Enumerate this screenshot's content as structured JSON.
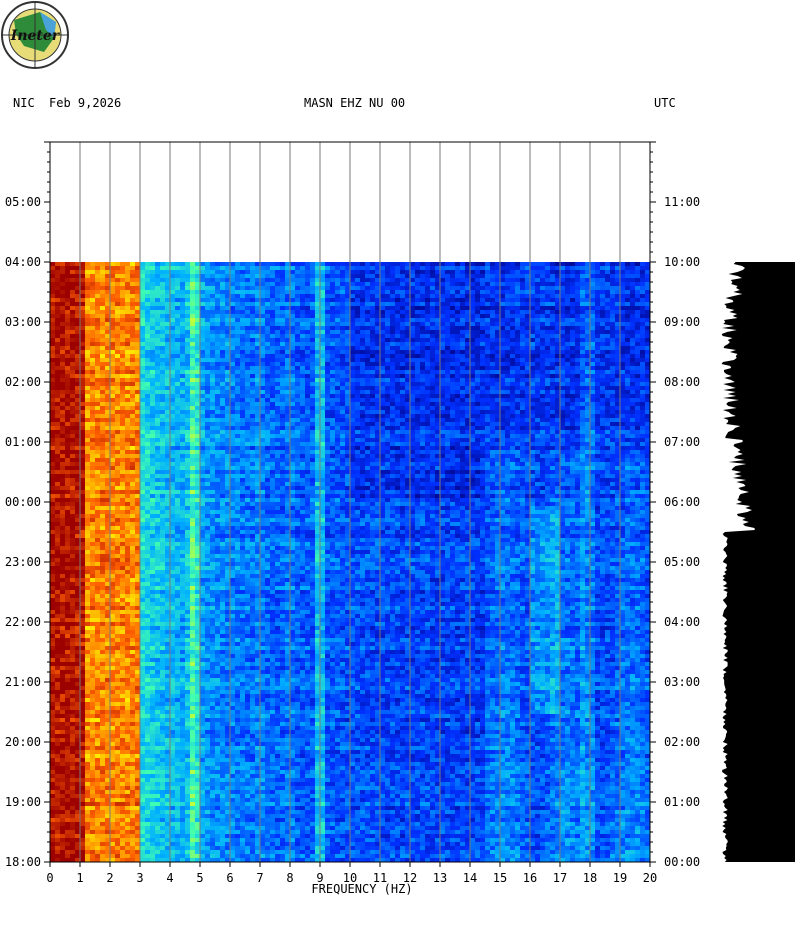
{
  "header": {
    "network": "NIC",
    "date": "Feb 9,2026",
    "station": "MASN EHZ NU 00",
    "tz": "UTC",
    "logo_text": "Ineter"
  },
  "chart_data": {
    "type": "heatmap",
    "title": "MASN EHZ NU 00",
    "xlabel": "FREQUENCY (HZ)",
    "xlim": [
      0,
      20
    ],
    "x_ticks": [
      "0",
      "1",
      "2",
      "3",
      "4",
      "5",
      "6",
      "7",
      "8",
      "9",
      "10",
      "11",
      "12",
      "13",
      "14",
      "15",
      "16",
      "17",
      "18",
      "19",
      "20"
    ],
    "y_ticks_left": [
      "18:00",
      "19:00",
      "20:00",
      "21:00",
      "22:00",
      "23:00",
      "00:00",
      "01:00",
      "02:00",
      "03:00",
      "04:00",
      "05:00"
    ],
    "y_ticks_right": [
      "00:00",
      "01:00",
      "02:00",
      "03:00",
      "04:00",
      "05:00",
      "06:00",
      "07:00",
      "08:00",
      "09:00",
      "10:00",
      "11:00"
    ],
    "hours_total": 12,
    "hours_with_data": 10,
    "colormap": [
      "#00007f",
      "#0030ff",
      "#00b0ff",
      "#40ffb0",
      "#ffff00",
      "#ff6000",
      "#9b0000"
    ],
    "description_bands": [
      {
        "freq": 0.5,
        "level": "max"
      },
      {
        "freq": 4.8,
        "level": "high"
      },
      {
        "freq": 9.0,
        "level": "high"
      }
    ],
    "grid": true
  }
}
